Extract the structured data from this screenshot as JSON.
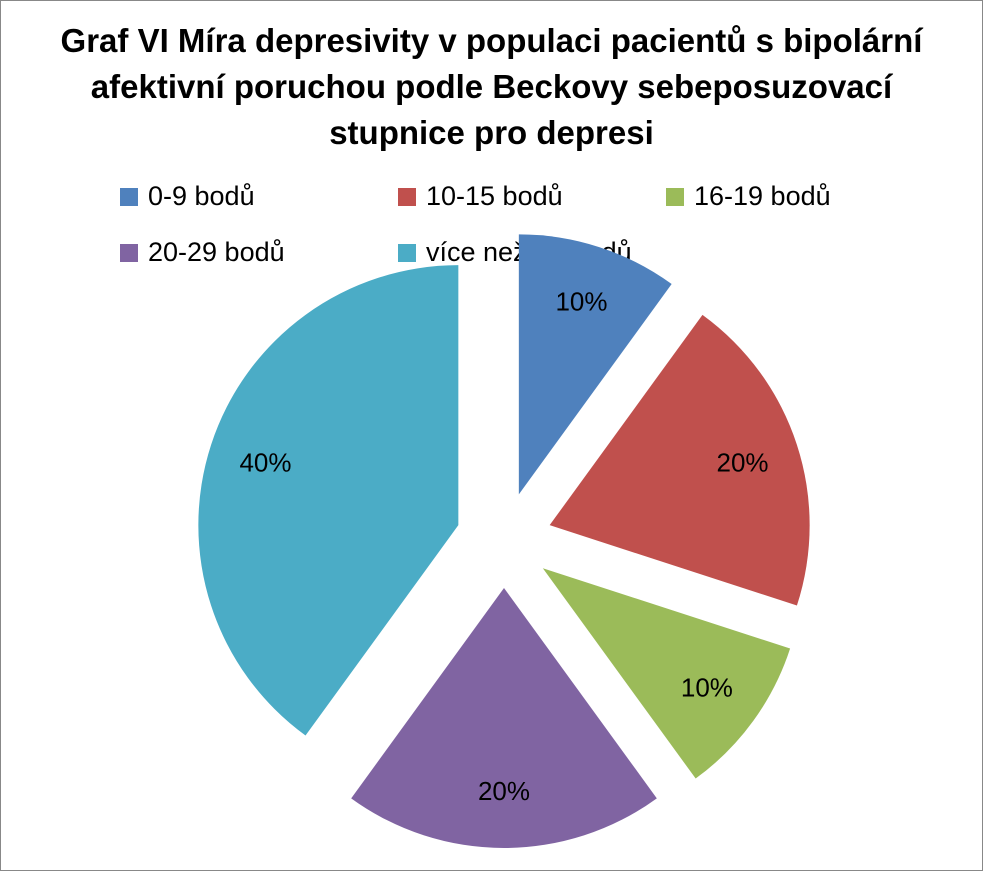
{
  "chart_data": {
    "type": "pie",
    "title": "Graf VI Míra depresivity v populaci pacientů s bipolární afektivní poruchou podle Beckovy sebeposuzovací stupnice pro depresi",
    "legend_position": "top",
    "exploded": true,
    "slices": [
      {
        "label": "0-9 bodů",
        "value": 10,
        "data_label": "10%",
        "color": "#4F81BD"
      },
      {
        "label": "10-15 bodů",
        "value": 20,
        "data_label": "20%",
        "color": "#C0504D"
      },
      {
        "label": "16-19 bodů",
        "value": 10,
        "data_label": "10%",
        "color": "#9BBB59"
      },
      {
        "label": "20-29 bodů",
        "value": 20,
        "data_label": "20%",
        "color": "#8064A2"
      },
      {
        "label": "více než 30 bodů",
        "value": 40,
        "data_label": "40%",
        "color": "#4BACC6"
      }
    ]
  }
}
